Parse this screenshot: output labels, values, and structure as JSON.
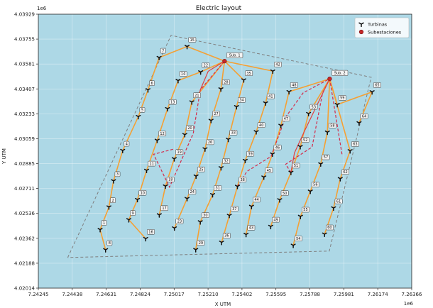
{
  "chart_data": {
    "type": "scatter",
    "title": "Electric layout",
    "xlabel": "X UTM",
    "ylabel": "Y UTM",
    "x_offset_text": "1e6",
    "y_offset_text": "1e6",
    "xlim": [
      7.24245,
      7.26366
    ],
    "ylim": [
      4.02014,
      4.03929
    ],
    "x_ticks": [
      "7.24245",
      "7.24438",
      "7.24631",
      "7.24824",
      "7.25017",
      "7.25210",
      "7.25402",
      "7.25595",
      "7.25788",
      "7.25981",
      "7.26174",
      "7.26366"
    ],
    "y_ticks": [
      "4.02014",
      "4.02188",
      "4.02362",
      "4.02536",
      "4.02711",
      "4.02885",
      "4.03059",
      "4.03233",
      "4.03407",
      "4.03581",
      "4.03755",
      "4.03929"
    ],
    "grid": true,
    "legend_position": "top-right",
    "legend": [
      {
        "marker": "tri-icon",
        "label": "Turbinas"
      },
      {
        "marker": "circle-icon",
        "label": "Subestaciones"
      }
    ],
    "colors": {
      "background": "#add8e6",
      "cable": "#f5a033",
      "dashed_cable": "#d42a4a",
      "solid_red": "#e04040",
      "boundary": "#7f7f7f",
      "turbine": "#111111",
      "substation": "#c62828"
    },
    "boundary": [
      [
        7.24412,
        4.02228
      ],
      [
        7.24999,
        4.03781
      ],
      [
        7.26136,
        4.03488
      ],
      [
        7.25898,
        4.02273
      ]
    ],
    "substations": [
      {
        "name": "Sub. 1",
        "x": 7.25303,
        "y": 4.03601
      },
      {
        "name": "Sub. 2",
        "x": 7.259,
        "y": 4.03477
      }
    ],
    "turbines": [
      {
        "id": "1",
        "x": 7.24596,
        "y": 4.02423
      },
      {
        "id": "2",
        "x": 7.24646,
        "y": 4.02581
      },
      {
        "id": "3",
        "x": 7.24672,
        "y": 4.02764
      },
      {
        "id": "4",
        "x": 7.24724,
        "y": 4.02976
      },
      {
        "id": "5",
        "x": 7.24813,
        "y": 4.03213
      },
      {
        "id": "6",
        "x": 7.24868,
        "y": 4.034
      },
      {
        "id": "7",
        "x": 7.24931,
        "y": 4.03626
      },
      {
        "id": "8",
        "x": 7.24627,
        "y": 4.02282
      },
      {
        "id": "9",
        "x": 7.24759,
        "y": 4.02492
      },
      {
        "id": "10",
        "x": 7.24808,
        "y": 4.02633
      },
      {
        "id": "11",
        "x": 7.2486,
        "y": 4.02837
      },
      {
        "id": "12",
        "x": 7.2492,
        "y": 4.03047
      },
      {
        "id": "13",
        "x": 7.24979,
        "y": 4.03268
      },
      {
        "id": "14",
        "x": 7.25039,
        "y": 4.03465
      },
      {
        "id": "15",
        "x": 7.2509,
        "y": 4.03703
      },
      {
        "id": "16",
        "x": 7.24855,
        "y": 4.0236
      },
      {
        "id": "17",
        "x": 7.24932,
        "y": 4.02526
      },
      {
        "id": "18",
        "x": 7.24967,
        "y": 4.02727
      },
      {
        "id": "19",
        "x": 7.25017,
        "y": 4.02918
      },
      {
        "id": "20",
        "x": 7.25077,
        "y": 4.03087
      },
      {
        "id": "21",
        "x": 7.25117,
        "y": 4.03315
      },
      {
        "id": "22",
        "x": 7.25167,
        "y": 4.03525
      },
      {
        "id": "23",
        "x": 7.25018,
        "y": 4.02434
      },
      {
        "id": "24",
        "x": 7.2509,
        "y": 4.0264
      },
      {
        "id": "25",
        "x": 7.25141,
        "y": 4.02797
      },
      {
        "id": "26",
        "x": 7.25192,
        "y": 4.02987
      },
      {
        "id": "27",
        "x": 7.25226,
        "y": 4.03186
      },
      {
        "id": "28",
        "x": 7.25282,
        "y": 4.03406
      },
      {
        "id": "29",
        "x": 7.25139,
        "y": 4.02283
      },
      {
        "id": "30",
        "x": 7.25165,
        "y": 4.02477
      },
      {
        "id": "31",
        "x": 7.25235,
        "y": 4.02667
      },
      {
        "id": "32",
        "x": 7.25283,
        "y": 4.02855
      },
      {
        "id": "33",
        "x": 7.25324,
        "y": 4.03054
      },
      {
        "id": "34",
        "x": 7.25371,
        "y": 4.03282
      },
      {
        "id": "35",
        "x": 7.25412,
        "y": 4.03469
      },
      {
        "id": "36",
        "x": 7.25286,
        "y": 4.02334
      },
      {
        "id": "37",
        "x": 7.2533,
        "y": 4.02522
      },
      {
        "id": "38",
        "x": 7.25376,
        "y": 4.02725
      },
      {
        "id": "39",
        "x": 7.2542,
        "y": 4.02906
      },
      {
        "id": "40",
        "x": 7.25483,
        "y": 4.03107
      },
      {
        "id": "41",
        "x": 7.25536,
        "y": 4.03308
      },
      {
        "id": "42",
        "x": 7.25577,
        "y": 4.03531
      },
      {
        "id": "43",
        "x": 7.25425,
        "y": 4.02389
      },
      {
        "id": "44",
        "x": 7.25456,
        "y": 4.02585
      },
      {
        "id": "45",
        "x": 7.25526,
        "y": 4.0279
      },
      {
        "id": "46",
        "x": 7.25575,
        "y": 4.02951
      },
      {
        "id": "47",
        "x": 7.25623,
        "y": 4.03151
      },
      {
        "id": "48",
        "x": 7.25669,
        "y": 4.03387
      },
      {
        "id": "49",
        "x": 7.25565,
        "y": 4.02445
      },
      {
        "id": "50",
        "x": 7.25616,
        "y": 4.02631
      },
      {
        "id": "51",
        "x": 7.2568,
        "y": 4.02823
      },
      {
        "id": "52",
        "x": 7.25733,
        "y": 4.03003
      },
      {
        "id": "53",
        "x": 7.2578,
        "y": 4.03234
      },
      {
        "id": "54",
        "x": 7.25693,
        "y": 4.02313
      },
      {
        "id": "55",
        "x": 7.25734,
        "y": 4.02515
      },
      {
        "id": "56",
        "x": 7.2579,
        "y": 4.02691
      },
      {
        "id": "57",
        "x": 7.25849,
        "y": 4.02882
      },
      {
        "id": "58",
        "x": 7.25887,
        "y": 4.03104
      },
      {
        "id": "59",
        "x": 7.25943,
        "y": 4.03297
      },
      {
        "id": "60",
        "x": 7.25871,
        "y": 4.02391
      },
      {
        "id": "61",
        "x": 7.25922,
        "y": 4.02574
      },
      {
        "id": "62",
        "x": 7.2596,
        "y": 4.02779
      },
      {
        "id": "63",
        "x": 7.26016,
        "y": 4.02974
      },
      {
        "id": "64",
        "x": 7.26067,
        "y": 4.03169
      },
      {
        "id": "65",
        "x": 7.26141,
        "y": 4.03386
      }
    ],
    "cables": [
      [
        "8",
        "1",
        "2",
        "3",
        "4",
        "5",
        "6",
        "7",
        "15",
        "Sub. 1"
      ],
      [
        "16",
        "9",
        "10",
        "11",
        "12",
        "13",
        "14",
        "22",
        "Sub. 1"
      ],
      [
        "17",
        "18",
        "19",
        "20",
        "21",
        "Sub. 1"
      ],
      [
        "23",
        "24",
        "25",
        "26",
        "27",
        "28",
        "Sub. 1"
      ],
      [
        "29",
        "30",
        "31",
        "32",
        "33",
        "34",
        "35",
        "Sub. 1"
      ],
      [
        "36",
        "37",
        "38",
        "39",
        "40",
        "41",
        "42",
        "Sub. 1"
      ],
      [
        "43",
        "44",
        "45",
        "46",
        "47",
        "48",
        "Sub. 2"
      ],
      [
        "49",
        "50",
        "51",
        "52",
        "53",
        "Sub. 2"
      ],
      [
        "54",
        "55",
        "56",
        "57",
        "58",
        "Sub. 2"
      ],
      [
        "60",
        "61",
        "62",
        "63",
        "Sub. 2"
      ],
      [
        "64",
        "65",
        "59",
        "Sub. 2"
      ]
    ],
    "red_dashed_cables": [
      [
        [
          7.2501,
          4.02985
        ],
        [
          7.249,
          4.0295
        ],
        [
          7.2499,
          4.0272
        ],
        [
          7.25125,
          4.03095
        ],
        [
          7.25165,
          4.034
        ],
        [
          7.25303,
          4.03601
        ]
      ],
      [
        [
          7.25376,
          4.02725
        ],
        [
          7.2543,
          4.0283
        ],
        [
          7.25567,
          4.02935
        ],
        [
          7.2565,
          4.0321
        ],
        [
          7.2575,
          4.0338
        ],
        [
          7.259,
          4.03477
        ]
      ],
      [
        [
          7.2568,
          4.02823
        ],
        [
          7.2565,
          4.0288
        ],
        [
          7.258,
          4.03
        ],
        [
          7.2586,
          4.0338
        ],
        [
          7.259,
          4.03477
        ]
      ],
      [
        [
          7.2597,
          4.0295
        ],
        [
          7.2595,
          4.031
        ],
        [
          7.259,
          4.03477
        ]
      ]
    ],
    "red_solid_cables": [
      [
        [
          7.25165,
          4.034
        ],
        [
          7.2521,
          4.0353
        ],
        [
          7.25303,
          4.03601
        ]
      ],
      [
        [
          7.2568,
          4.02823
        ],
        [
          7.257,
          4.0296
        ],
        [
          7.2576,
          4.0312
        ],
        [
          7.259,
          4.03477
        ]
      ]
    ]
  }
}
